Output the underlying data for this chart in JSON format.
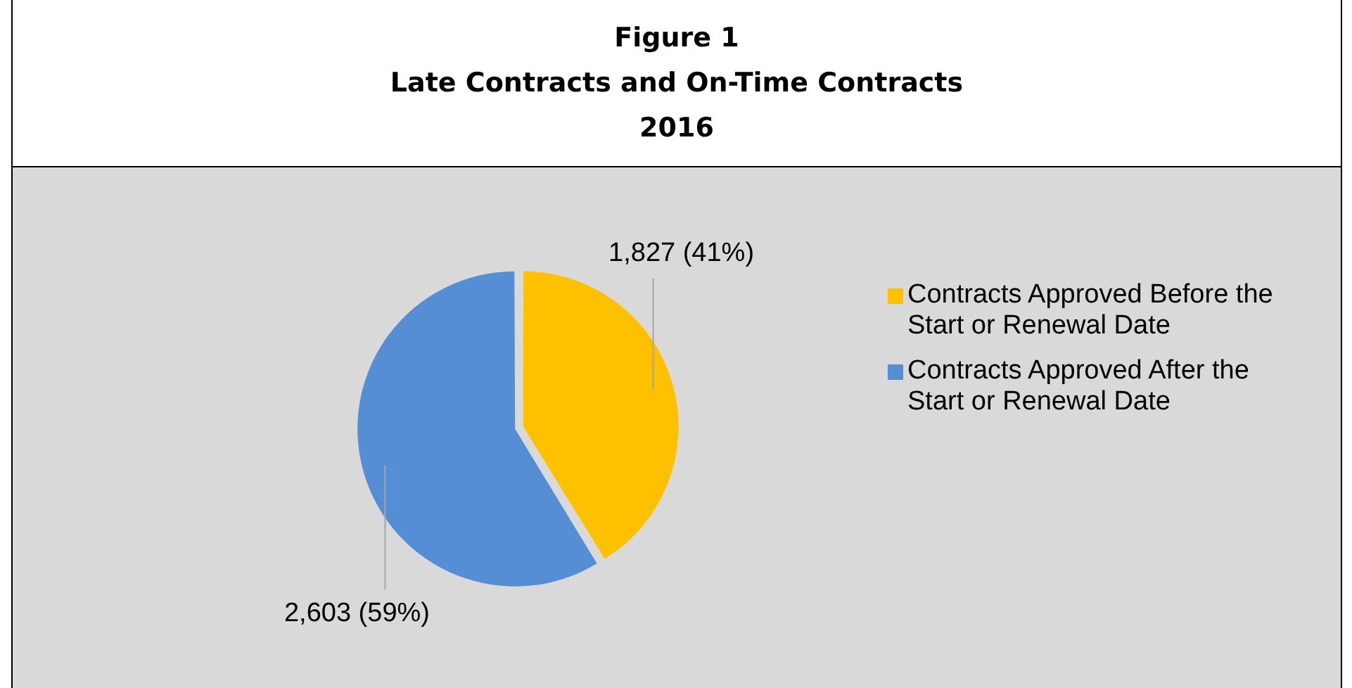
{
  "chart_data": {
    "type": "pie",
    "title": "Figure 1\nLate Contracts and On-Time Contracts\n2016",
    "categories": [
      "Contracts Approved Before the Start or Renewal Date",
      "Contracts Approved After the Start or Renewal Date"
    ],
    "values": [
      1827,
      2603
    ],
    "colors": [
      "#ffc000",
      "#558ed5"
    ],
    "value_labels": [
      "1,827 (41%)",
      "2,603 (59%)"
    ],
    "legend": "right"
  }
}
